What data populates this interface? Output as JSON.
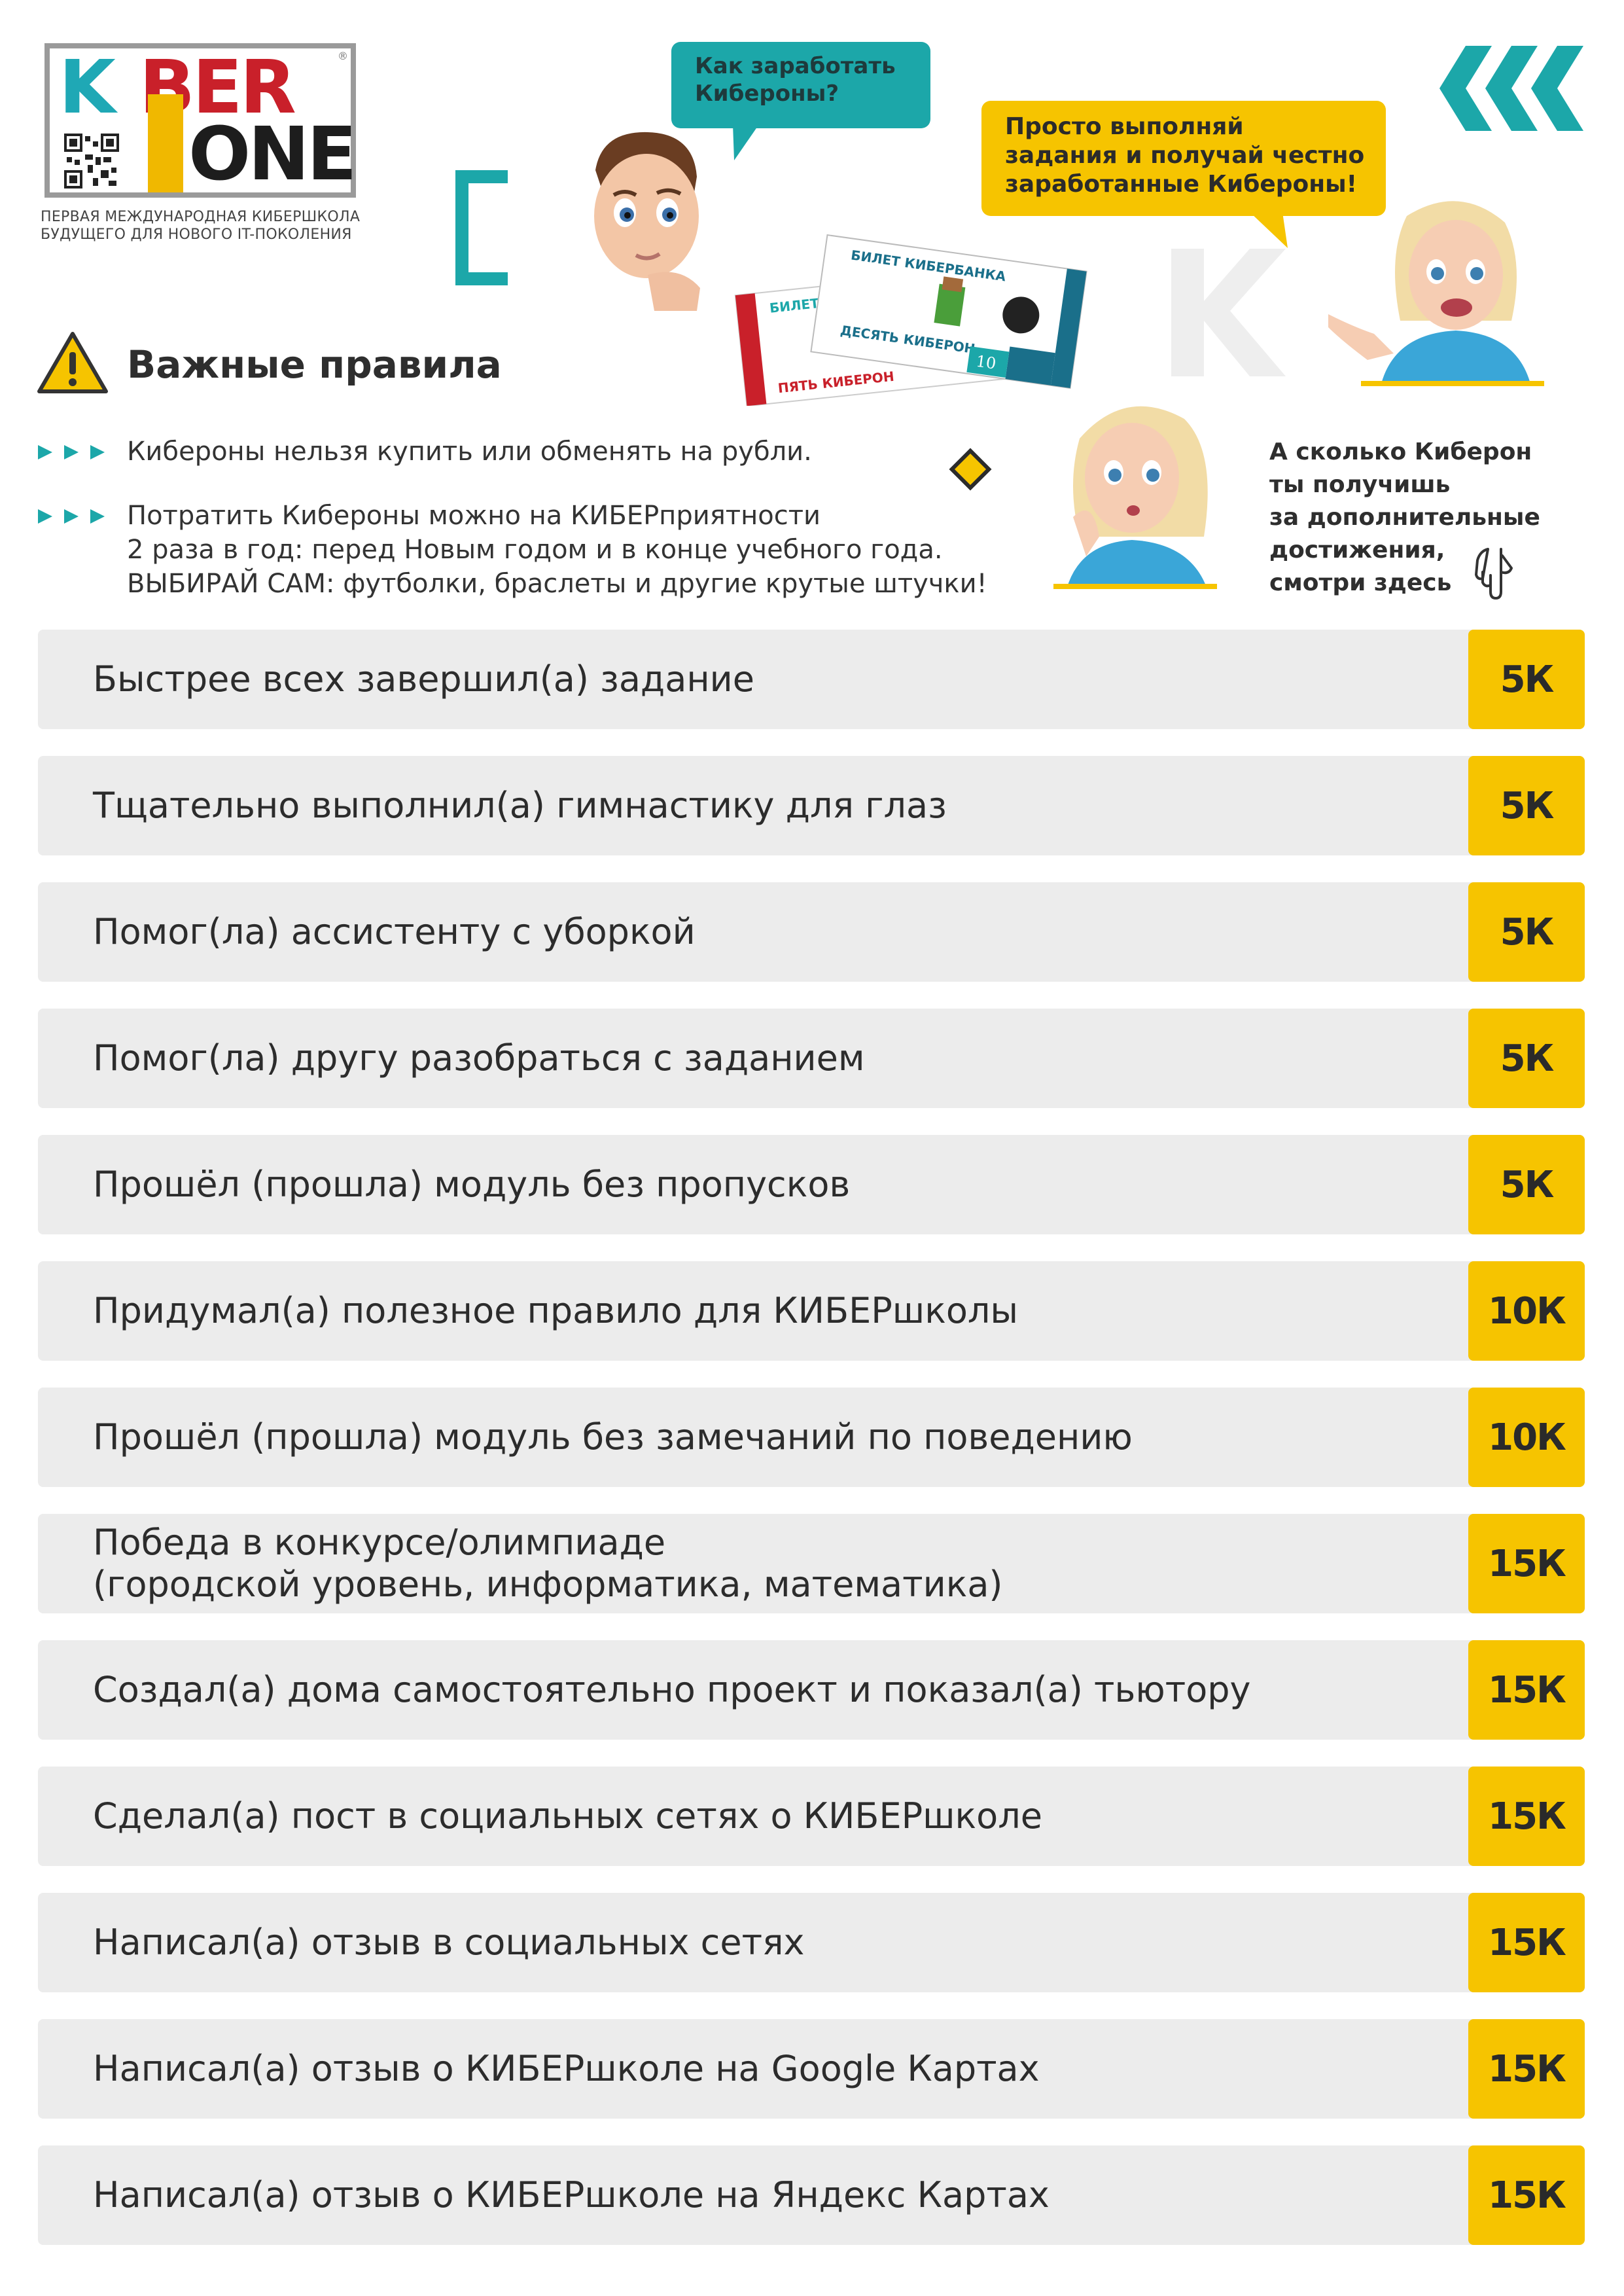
{
  "logo": {
    "row1_k": "K",
    "row1_rest": "BER",
    "row2": "ONE",
    "reg": "®",
    "tagline_line1": "Первая международная киберШкола",
    "tagline_line2": "будущего для нового IT-поколения"
  },
  "bubbles": {
    "question": [
      "Как заработать",
      "Кибероны?"
    ],
    "answer": [
      "Просто выполняй",
      "задания и получай честно",
      "заработанные Кибероны!"
    ]
  },
  "tickets": {
    "back_header": "БИЛЕТ",
    "back_value": "ПЯТЬ КИБЕРОН",
    "front_header": "БИЛЕТ КИБЕРБАНКА",
    "front_value": "ДЕСЯТЬ КИБЕРОН",
    "front_number": "10"
  },
  "rules": {
    "heading": "Важные правила",
    "items": [
      "Кибероны нельзя купить или обменять на рубли.",
      "Потратить Кибероны можно на КИБЕРприятности\n2 раза в год: перед Новым годом и в конце учебного года.\nВЫБИРАЙ САМ: футболки, браслеты и другие крутые штучки!"
    ]
  },
  "hint": [
    "А сколько Киберон",
    "ты получишь",
    "за дополнительные",
    "достижения,",
    "смотри здесь"
  ],
  "rewards": [
    {
      "label": "Быстрее всех завершил(а) задание",
      "value": "5К"
    },
    {
      "label": "Тщательно выполнил(а) гимнастику для глаз",
      "value": "5К"
    },
    {
      "label": "Помог(ла) ассистенту с уборкой",
      "value": "5К"
    },
    {
      "label": "Помог(ла) другу разобраться с заданием",
      "value": "5К"
    },
    {
      "label": "Прошёл (прошла) модуль без пропусков",
      "value": "5К"
    },
    {
      "label": "Придумал(а) полезное правило для КИБЕРшколы",
      "value": "10К"
    },
    {
      "label": "Прошёл (прошла) модуль без замечаний по поведению",
      "value": "10К"
    },
    {
      "label": "Победа в конкурсе/олимпиаде\n(городской уровень, информатика, математика)",
      "value": "15К"
    },
    {
      "label": "Создал(а) дома самостоятельно проект и показал(а) тьютору",
      "value": "15К"
    },
    {
      "label": "Сделал(а) пост в социальных сетях о КИБЕРшколе",
      "value": "15К"
    },
    {
      "label": "Написал(а) отзыв в социальных сетях",
      "value": "15К"
    },
    {
      "label": "Написал(а) отзыв о КИБЕРшколе на Google Картах",
      "value": "15К"
    },
    {
      "label": "Написал(а) отзыв о КИБЕРшколе на Яндекс Картах",
      "value": "15К"
    }
  ],
  "colors": {
    "yellow": "#f6c400",
    "teal": "#1ca7a9",
    "row_bg": "#ececec"
  }
}
